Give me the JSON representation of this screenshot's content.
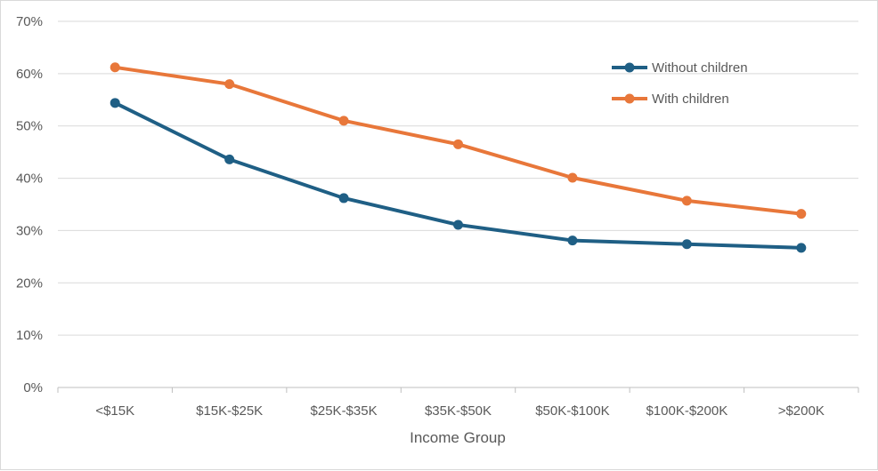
{
  "chart_data": {
    "type": "line",
    "title": "",
    "xlabel": "Income Group",
    "ylabel": "",
    "categories": [
      "<$15K",
      "$15K-$25K",
      "$25K-$35K",
      "$35K-$50K",
      "$50K-$100K",
      "$100K-$200K",
      ">$200K"
    ],
    "y_ticks": [
      "0%",
      "10%",
      "20%",
      "30%",
      "40%",
      "50%",
      "60%",
      "70%"
    ],
    "ylim": [
      0,
      70
    ],
    "grid": true,
    "legend_position": "top-right",
    "series": [
      {
        "name": "Without children",
        "color": "#1f5f85",
        "values": [
          54.4,
          43.6,
          36.2,
          31.1,
          28.1,
          27.4,
          26.7
        ]
      },
      {
        "name": "With children",
        "color": "#e8773a",
        "values": [
          61.2,
          58.0,
          51.0,
          46.5,
          40.1,
          35.7,
          33.2
        ]
      }
    ]
  }
}
